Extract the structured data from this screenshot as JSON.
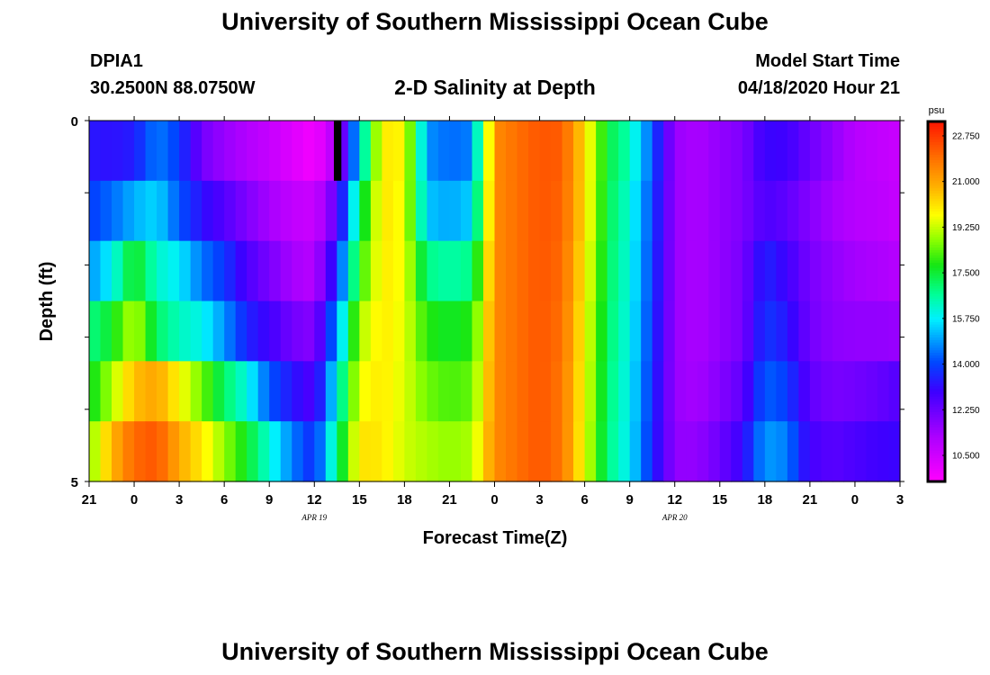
{
  "chart_data": {
    "type": "heatmap",
    "title": "University of Southern Mississippi Ocean Cube",
    "footer_title": "University of Southern Mississippi Ocean Cube",
    "station": "DPIA1",
    "location": "30.2500N 88.0750W",
    "subtitle": "2-D Salinity at Depth",
    "model_start_label": "Model Start Time",
    "model_start_value": "04/18/2020 Hour 21",
    "xlabel": "Forecast Time(Z)",
    "ylabel": "Depth (ft)",
    "x_ticks": [
      "21",
      "0",
      "3",
      "6",
      "9",
      "12",
      "15",
      "18",
      "21",
      "0",
      "3",
      "6",
      "9",
      "12",
      "15",
      "18",
      "21",
      "0",
      "3"
    ],
    "date_labels": [
      {
        "text": "APR 19",
        "tick_index": 5
      },
      {
        "text": "APR 20",
        "tick_index": 13
      }
    ],
    "y_ticks": [
      "0",
      "5"
    ],
    "ylim": [
      0,
      5
    ],
    "colorbar": {
      "unit": "psu",
      "min": 9.5,
      "max": 23.3,
      "ticks": [
        "22.750",
        "21.000",
        "19.250",
        "17.500",
        "15.750",
        "14.000",
        "12.250",
        "10.500"
      ],
      "tick_values": [
        22.75,
        21.0,
        19.25,
        17.5,
        15.75,
        14.0,
        12.25,
        10.5
      ]
    },
    "time_knots_hours": [
      0,
      1.5,
      3,
      4.5,
      6,
      7.5,
      9,
      10.5,
      12,
      13.5,
      15,
      16.5,
      18,
      19.5,
      21,
      22.5,
      24,
      25.5,
      27,
      28.5,
      30,
      31.5,
      33,
      34.5,
      36,
      37.5,
      39,
      40.5,
      42,
      43.5,
      45,
      46.5,
      48,
      49.5,
      51,
      52.5,
      54
    ],
    "depth_layers": [
      {
        "label": "0",
        "values": [
          13.3,
          13.2,
          13.4,
          14.6,
          13.9,
          12.1,
          11.5,
          11.1,
          10.7,
          10.2,
          9.7,
          11.2,
          15.5,
          20.0,
          19.8,
          14.8,
          14.4,
          14.6,
          21.4,
          21.9,
          22.3,
          22.2,
          20.2,
          17.4,
          16.4,
          14.2,
          11.5,
          11.2,
          11.6,
          11.9,
          13.0,
          12.9,
          12.2,
          11.6,
          11.0,
          10.8,
          10.6
        ]
      },
      {
        "label": "1",
        "values": [
          13.9,
          14.4,
          15.1,
          15.5,
          14.2,
          13.2,
          12.6,
          11.9,
          11.3,
          10.8,
          10.6,
          12.4,
          17.0,
          20.1,
          19.6,
          15.3,
          15.0,
          15.4,
          21.4,
          21.9,
          22.3,
          22.1,
          20.2,
          17.3,
          16.1,
          14.0,
          11.5,
          11.2,
          11.6,
          11.9,
          12.7,
          12.4,
          11.8,
          11.3,
          11.0,
          10.9,
          10.7
        ]
      },
      {
        "label": "2",
        "values": [
          14.8,
          15.8,
          17.8,
          16.2,
          15.7,
          14.5,
          13.8,
          12.7,
          12.0,
          11.3,
          11.0,
          13.6,
          17.9,
          20.0,
          19.6,
          16.8,
          16.5,
          16.8,
          21.4,
          21.9,
          22.3,
          22.0,
          20.0,
          17.2,
          16.0,
          13.9,
          11.5,
          11.2,
          11.6,
          12.0,
          13.5,
          12.9,
          12.0,
          11.6,
          11.3,
          11.2,
          11.0
        ]
      },
      {
        "label": "3",
        "values": [
          16.8,
          17.6,
          19.2,
          17.1,
          16.3,
          15.9,
          14.8,
          13.5,
          12.9,
          12.1,
          11.8,
          14.8,
          19.0,
          20.0,
          19.5,
          17.9,
          17.6,
          17.9,
          21.4,
          21.9,
          22.3,
          21.9,
          19.8,
          17.1,
          15.9,
          13.8,
          11.5,
          11.2,
          11.6,
          12.0,
          13.8,
          13.3,
          12.1,
          11.7,
          11.6,
          11.6,
          11.5
        ]
      },
      {
        "label": "4",
        "values": [
          17.5,
          19.0,
          20.6,
          21.0,
          19.8,
          18.5,
          17.1,
          16.0,
          14.2,
          13.3,
          12.6,
          15.9,
          19.6,
          20.0,
          19.4,
          18.5,
          18.2,
          18.4,
          21.4,
          21.9,
          22.3,
          21.8,
          19.7,
          17.0,
          15.8,
          13.7,
          11.5,
          11.3,
          11.8,
          12.4,
          14.3,
          13.9,
          12.4,
          12.0,
          12.1,
          12.3,
          12.6
        ]
      },
      {
        "label": "5",
        "values": [
          18.6,
          20.7,
          22.0,
          22.3,
          20.9,
          20.0,
          18.8,
          17.6,
          16.1,
          14.6,
          13.6,
          16.8,
          20.1,
          20.0,
          19.3,
          19.0,
          18.8,
          19.0,
          21.4,
          21.9,
          22.3,
          21.8,
          19.6,
          16.9,
          15.7,
          13.6,
          11.6,
          11.6,
          12.2,
          13.0,
          14.9,
          14.6,
          12.8,
          12.5,
          12.7,
          12.9,
          13.0
        ]
      }
    ],
    "missing_data": [
      {
        "layer": 0,
        "start_hour": 16.3,
        "end_hour": 16.8
      }
    ]
  }
}
